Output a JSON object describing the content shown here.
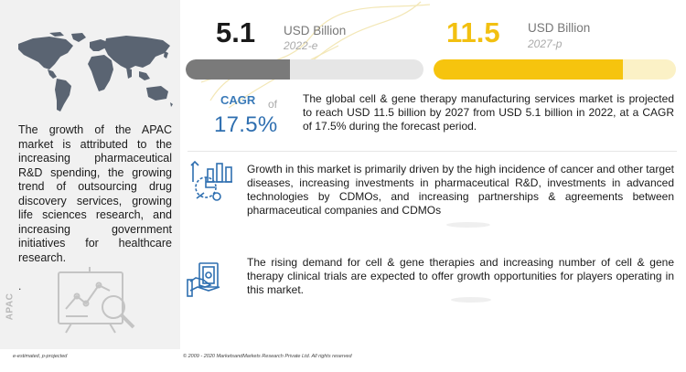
{
  "left": {
    "description": "The growth of the APAC market is attributed to the increasing pharmaceutical R&D spending, the growing trend of outsourcing drug discovery services, growing life sciences research, and increasing government initiatives for healthcare research.",
    "dot": ".",
    "region_label": "APAC"
  },
  "market_2022": {
    "value": "5.1",
    "unit": "USD Billion",
    "year": "2022-e",
    "bar_fill_fraction": 0.44,
    "color_value": "#1a1a1a",
    "color_bar": "#7a7a7a",
    "color_track": "#e6e6e6"
  },
  "market_2027": {
    "value": "11.5",
    "unit": "USD Billion",
    "year": "2027-p",
    "bar_fill_fraction": 0.78,
    "color_value": "#f2c011",
    "color_bar": "#f6c40e",
    "color_track": "#fbf1c6"
  },
  "cagr": {
    "label": "CAGR",
    "of": "of",
    "value": "17.5%"
  },
  "summary": "The global cell & gene therapy manufacturing services market is projected to reach USD 11.5 billion by 2027 from USD 5.1 billion in 2022, at a CAGR of 17.5% during the forecast period.",
  "drivers": "Growth in this market is primarily driven by the high incidence of cancer and other target diseases, increasing investments in pharmaceutical R&D, investments in advanced technologies by CDMOs, and increasing partnerships & agreements between pharmaceutical companies and CDMOs",
  "opportunities": "The rising demand for cell & gene therapies and increasing number of cell & gene therapy clinical trials are expected to offer growth opportunities for players operating in this market.",
  "footer": {
    "legend": "e-estimated, p-projected",
    "copyright": "© 2009 - 2020 MarketsandMarkets Research Private Ltd. All rights reserved"
  },
  "icons": {
    "map": "world-map-icon",
    "chart_analysis": "chart-analysis-icon",
    "money": "money-hand-icon",
    "analytics": "analytics-magnifier-icon"
  }
}
